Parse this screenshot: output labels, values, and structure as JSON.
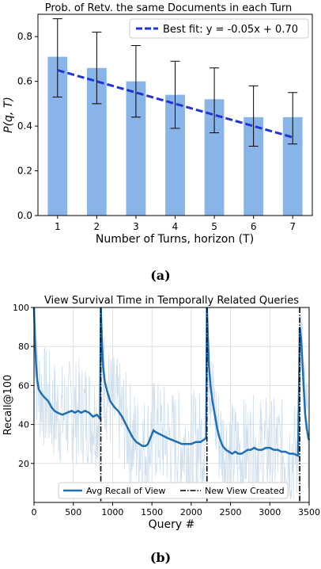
{
  "chart_data": [
    {
      "type": "bar",
      "title": "Prob. of Retv. the same Documents in each Turn",
      "xlabel": "Number of Turns, horizon (T)",
      "ylabel": "P(q, T)",
      "categories": [
        "1",
        "2",
        "3",
        "4",
        "5",
        "6",
        "7"
      ],
      "values": [
        0.71,
        0.66,
        0.6,
        0.54,
        0.52,
        0.44,
        0.44
      ],
      "error_low": [
        0.53,
        0.5,
        0.44,
        0.39,
        0.37,
        0.31,
        0.32
      ],
      "error_high": [
        0.88,
        0.82,
        0.76,
        0.69,
        0.66,
        0.58,
        0.55
      ],
      "ylim": [
        0,
        0.9
      ],
      "yticks": [
        "0.0",
        "0.2",
        "0.4",
        "0.6",
        "0.8"
      ],
      "fit": {
        "label": "Best fit: y = -0.05x + 0.70",
        "slope": -0.05,
        "intercept": 0.7,
        "x_start": 1,
        "x_end": 7
      },
      "legend_placement": "top-right",
      "bar_color": "#89b4e8",
      "fit_color": "#1f33d6",
      "caption": "(a)"
    },
    {
      "type": "line",
      "title": "View Survival Time in Temporally Related Queries",
      "xlabel": "Query #",
      "ylabel": "Recall@100",
      "xlim": [
        0,
        3500
      ],
      "ylim": [
        0,
        100
      ],
      "xticks": [
        "0",
        "500",
        "1000",
        "1500",
        "2000",
        "2500",
        "3000",
        "3500"
      ],
      "yticks": [
        "20",
        "40",
        "60",
        "80",
        "100"
      ],
      "grid": true,
      "series": [
        {
          "name": "Avg Recall of View",
          "color": "#1f6fb4",
          "points": [
            [
              0,
              100
            ],
            [
              12,
              85
            ],
            [
              25,
              72
            ],
            [
              40,
              63
            ],
            [
              60,
              58
            ],
            [
              90,
              56
            ],
            [
              130,
              54
            ],
            [
              180,
              52
            ],
            [
              220,
              49
            ],
            [
              260,
              47
            ],
            [
              300,
              46
            ],
            [
              360,
              45
            ],
            [
              420,
              46
            ],
            [
              480,
              47
            ],
            [
              520,
              46
            ],
            [
              560,
              47
            ],
            [
              600,
              46
            ],
            [
              650,
              47
            ],
            [
              700,
              46
            ],
            [
              750,
              44
            ],
            [
              800,
              45
            ],
            [
              840,
              43
            ],
            [
              850,
              100
            ],
            [
              862,
              85
            ],
            [
              878,
              70
            ],
            [
              900,
              62
            ],
            [
              930,
              57
            ],
            [
              970,
              52
            ],
            [
              1020,
              49
            ],
            [
              1070,
              47
            ],
            [
              1120,
              44
            ],
            [
              1170,
              40
            ],
            [
              1220,
              36
            ],
            [
              1260,
              33
            ],
            [
              1300,
              31
            ],
            [
              1340,
              30
            ],
            [
              1380,
              29
            ],
            [
              1420,
              29
            ],
            [
              1450,
              30
            ],
            [
              1490,
              34
            ],
            [
              1520,
              37
            ],
            [
              1550,
              36
            ],
            [
              1600,
              35
            ],
            [
              1650,
              34
            ],
            [
              1700,
              33
            ],
            [
              1760,
              32
            ],
            [
              1820,
              31
            ],
            [
              1880,
              30
            ],
            [
              1940,
              30
            ],
            [
              2000,
              30
            ],
            [
              2060,
              31
            ],
            [
              2120,
              31
            ],
            [
              2190,
              33
            ],
            [
              2200,
              100
            ],
            [
              2212,
              85
            ],
            [
              2226,
              70
            ],
            [
              2245,
              60
            ],
            [
              2270,
              52
            ],
            [
              2300,
              45
            ],
            [
              2330,
              38
            ],
            [
              2360,
              33
            ],
            [
              2400,
              29
            ],
            [
              2440,
              27
            ],
            [
              2480,
              26
            ],
            [
              2520,
              25
            ],
            [
              2560,
              26
            ],
            [
              2600,
              25
            ],
            [
              2640,
              25
            ],
            [
              2680,
              26
            ],
            [
              2720,
              27
            ],
            [
              2760,
              27
            ],
            [
              2800,
              28
            ],
            [
              2850,
              27
            ],
            [
              2900,
              27
            ],
            [
              2950,
              28
            ],
            [
              3000,
              28
            ],
            [
              3050,
              27
            ],
            [
              3100,
              27
            ],
            [
              3150,
              26
            ],
            [
              3200,
              26
            ],
            [
              3250,
              25
            ],
            [
              3300,
              25
            ],
            [
              3360,
              24
            ],
            [
              3380,
              90
            ],
            [
              3395,
              85
            ],
            [
              3410,
              75
            ],
            [
              3430,
              60
            ],
            [
              3450,
              45
            ],
            [
              3470,
              38
            ],
            [
              3490,
              33
            ],
            [
              3500,
              32
            ]
          ]
        }
      ],
      "new_view_x": [
        850,
        2200,
        3380
      ],
      "new_view_label": "New View Created",
      "legend_placement": "bottom-center",
      "noise_color": "#c9dced",
      "caption": "(b)"
    }
  ]
}
